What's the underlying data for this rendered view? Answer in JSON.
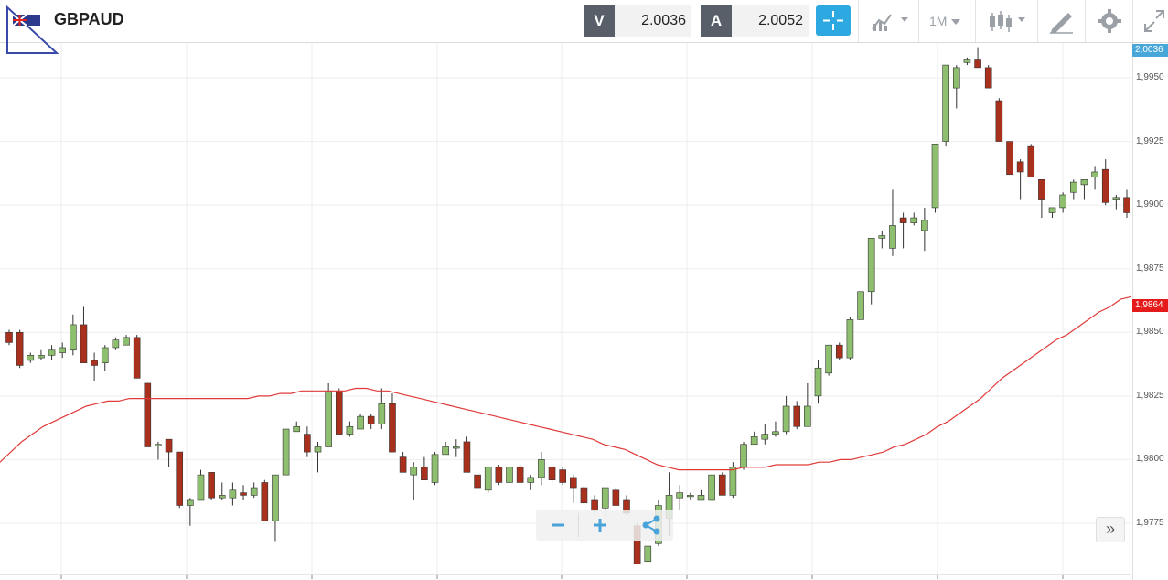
{
  "header": {
    "symbol": "GBPAUD",
    "sell_label": "V",
    "sell_price": "2.0036",
    "buy_label": "A",
    "buy_price": "2.0052",
    "timeframe": "1M",
    "accent_color": "#2ea8e0"
  },
  "icons": [
    "flag-icon",
    "crosshair-icon",
    "indicators-icon",
    "candle-type-icon",
    "draw-icon",
    "settings-icon",
    "fullscreen-icon",
    "share-icon",
    "zoom-out-icon",
    "zoom-in-icon",
    "scroll-right-icon"
  ],
  "chart_data": {
    "type": "candlestick",
    "ylim": [
      1.9758,
      1.9962
    ],
    "y_ticks": [
      "1,9950",
      "1,9925",
      "1,9900",
      "1,9875",
      "1,9850",
      "1,9825",
      "1,9800",
      "1,9775"
    ],
    "y_tick_values": [
      1.995,
      1.9925,
      1.99,
      1.9875,
      1.985,
      1.9825,
      1.98,
      1.9775
    ],
    "grid": true,
    "current_price_label": "2,0036",
    "ma_value_label": "1,9864",
    "up_color": "#8dbf6e",
    "down_color": "#a8301c",
    "ma_color": "#e03a3a",
    "candles": [
      [
        1.985,
        1.9851,
        1.9845,
        1.9846
      ],
      [
        1.985,
        1.9851,
        1.9836,
        1.9837
      ],
      [
        1.9839,
        1.9842,
        1.9838,
        1.9841
      ],
      [
        1.984,
        1.9843,
        1.9839,
        1.9841
      ],
      [
        1.9841,
        1.9845,
        1.9839,
        1.9843
      ],
      [
        1.9842,
        1.9846,
        1.984,
        1.9844
      ],
      [
        1.9843,
        1.9857,
        1.9841,
        1.9853
      ],
      [
        1.9853,
        1.986,
        1.9838,
        1.9838
      ],
      [
        1.9839,
        1.9842,
        1.9831,
        1.9837
      ],
      [
        1.9838,
        1.9845,
        1.9835,
        1.9844
      ],
      [
        1.9844,
        1.9848,
        1.9843,
        1.9847
      ],
      [
        1.9845,
        1.9849,
        1.9846,
        1.9848
      ],
      [
        1.9848,
        1.9849,
        1.9832,
        1.9832
      ],
      [
        1.983,
        1.983,
        1.9805,
        1.9805
      ],
      [
        1.9806,
        1.9807,
        1.98,
        1.9806
      ],
      [
        1.9808,
        1.9808,
        1.9797,
        1.9803
      ],
      [
        1.9803,
        1.9803,
        1.9781,
        1.9782
      ],
      [
        1.9782,
        1.9785,
        1.9774,
        1.9784
      ],
      [
        1.9784,
        1.9796,
        1.9784,
        1.9794
      ],
      [
        1.9795,
        1.9795,
        1.9784,
        1.9785
      ],
      [
        1.9785,
        1.9791,
        1.9784,
        1.9786
      ],
      [
        1.9785,
        1.9791,
        1.9782,
        1.9788
      ],
      [
        1.9787,
        1.979,
        1.9784,
        1.9786
      ],
      [
        1.9786,
        1.9791,
        1.9785,
        1.9789
      ],
      [
        1.9791,
        1.9792,
        1.9776,
        1.9776
      ],
      [
        1.9776,
        1.9794,
        1.9768,
        1.9794
      ],
      [
        1.9794,
        1.9812,
        1.9794,
        1.9812
      ],
      [
        1.9811,
        1.9815,
        1.9811,
        1.9813
      ],
      [
        1.981,
        1.9813,
        1.9801,
        1.9803
      ],
      [
        1.9803,
        1.9807,
        1.9795,
        1.9805
      ],
      [
        1.9805,
        1.983,
        1.9805,
        1.9827
      ],
      [
        1.9827,
        1.9828,
        1.981,
        1.981
      ],
      [
        1.981,
        1.9815,
        1.9809,
        1.9813
      ],
      [
        1.9812,
        1.9818,
        1.9812,
        1.9817
      ],
      [
        1.9817,
        1.9818,
        1.9812,
        1.9814
      ],
      [
        1.9814,
        1.9828,
        1.9812,
        1.9822
      ],
      [
        1.9822,
        1.9826,
        1.9803,
        1.9803
      ],
      [
        1.9801,
        1.9803,
        1.9795,
        1.9795
      ],
      [
        1.9794,
        1.9799,
        1.9784,
        1.9797
      ],
      [
        1.9797,
        1.9801,
        1.9792,
        1.9792
      ],
      [
        1.9791,
        1.9803,
        1.979,
        1.9802
      ],
      [
        1.9802,
        1.9807,
        1.9802,
        1.9805
      ],
      [
        1.9805,
        1.9808,
        1.9801,
        1.9805
      ],
      [
        1.9807,
        1.9809,
        1.9795,
        1.9795
      ],
      [
        1.9794,
        1.9794,
        1.9789,
        1.9789
      ],
      [
        1.9788,
        1.9797,
        1.9787,
        1.9797
      ],
      [
        1.9797,
        1.9798,
        1.979,
        1.9791
      ],
      [
        1.9791,
        1.9797,
        1.9791,
        1.9797
      ],
      [
        1.9797,
        1.9798,
        1.9791,
        1.9791
      ],
      [
        1.9791,
        1.9794,
        1.9788,
        1.9793
      ],
      [
        1.9793,
        1.9803,
        1.979,
        1.98
      ],
      [
        1.9797,
        1.9798,
        1.9791,
        1.9792
      ],
      [
        1.9796,
        1.9797,
        1.979,
        1.9791
      ],
      [
        1.9793,
        1.9794,
        1.9783,
        1.9789
      ],
      [
        1.9789,
        1.979,
        1.9782,
        1.9783
      ],
      [
        1.9784,
        1.9786,
        1.9779,
        1.978
      ],
      [
        1.9781,
        1.9789,
        1.9777,
        1.9789
      ],
      [
        1.9788,
        1.9789,
        1.9782,
        1.9782
      ],
      [
        1.9784,
        1.9786,
        1.9778,
        1.9779
      ],
      [
        1.9774,
        1.9775,
        1.9759,
        1.9759
      ],
      [
        1.976,
        1.9766,
        1.976,
        1.9766
      ],
      [
        1.9767,
        1.9784,
        1.9766,
        1.9782
      ],
      [
        1.9777,
        1.9795,
        1.977,
        1.9786
      ],
      [
        1.9785,
        1.979,
        1.978,
        1.9787
      ],
      [
        1.9786,
        1.9787,
        1.9784,
        1.9786
      ],
      [
        1.9784,
        1.9788,
        1.9784,
        1.9786
      ],
      [
        1.9784,
        1.9794,
        1.9784,
        1.9794
      ],
      [
        1.9794,
        1.9795,
        1.9786,
        1.9786
      ],
      [
        1.9786,
        1.9799,
        1.9785,
        1.9797
      ],
      [
        1.9797,
        1.9807,
        1.9796,
        1.9806
      ],
      [
        1.9806,
        1.9811,
        1.9806,
        1.9809
      ],
      [
        1.9808,
        1.9814,
        1.9806,
        1.981
      ],
      [
        1.981,
        1.9815,
        1.9809,
        1.9811
      ],
      [
        1.9811,
        1.9825,
        1.981,
        1.9821
      ],
      [
        1.9821,
        1.9823,
        1.9812,
        1.9813
      ],
      [
        1.9813,
        1.983,
        1.9813,
        1.9821
      ],
      [
        1.9825,
        1.9839,
        1.9822,
        1.9836
      ],
      [
        1.9834,
        1.9845,
        1.9833,
        1.9845
      ],
      [
        1.9845,
        1.9846,
        1.9839,
        1.984
      ],
      [
        1.984,
        1.9856,
        1.9839,
        1.9855
      ],
      [
        1.9855,
        1.9866,
        1.9855,
        1.9866
      ],
      [
        1.9866,
        1.9887,
        1.9861,
        1.9887
      ],
      [
        1.9887,
        1.989,
        1.9883,
        1.9888
      ],
      [
        1.9883,
        1.9906,
        1.988,
        1.9892
      ],
      [
        1.9895,
        1.9897,
        1.9883,
        1.9893
      ],
      [
        1.9893,
        1.9897,
        1.9892,
        1.9895
      ],
      [
        1.989,
        1.9899,
        1.9882,
        1.9894
      ],
      [
        1.9899,
        1.9924,
        1.9897,
        1.9924
      ],
      [
        1.9925,
        1.9955,
        1.9923,
        1.9955
      ],
      [
        1.9946,
        1.9955,
        1.9938,
        1.9954
      ],
      [
        1.9956,
        1.9958,
        1.9955,
        1.9957
      ],
      [
        1.9957,
        1.9962,
        1.9954,
        1.9954
      ],
      [
        1.9954,
        1.9955,
        1.9946,
        1.9946
      ],
      [
        1.9941,
        1.9942,
        1.9925,
        1.9925
      ],
      [
        1.9925,
        1.9925,
        1.9912,
        1.9912
      ],
      [
        1.9917,
        1.9918,
        1.9902,
        1.9913
      ],
      [
        1.9923,
        1.9924,
        1.9911,
        1.9911
      ],
      [
        1.991,
        1.991,
        1.9895,
        1.9902
      ],
      [
        1.9897,
        1.9899,
        1.9895,
        1.9899
      ],
      [
        1.9899,
        1.9905,
        1.9897,
        1.9904
      ],
      [
        1.9905,
        1.991,
        1.9902,
        1.9909
      ],
      [
        1.9908,
        1.9909,
        1.9902,
        1.991
      ],
      [
        1.9911,
        1.9915,
        1.9906,
        1.9913
      ],
      [
        1.9914,
        1.9918,
        1.99,
        1.9901
      ],
      [
        1.9902,
        1.9904,
        1.9898,
        1.9903
      ],
      [
        1.9903,
        1.9906,
        1.9895,
        1.9897
      ]
    ],
    "ma": [
      1.9799,
      1.9803,
      1.9807,
      1.981,
      1.9813,
      1.9815,
      1.9817,
      1.9819,
      1.9821,
      1.9822,
      1.9823,
      1.9823,
      1.9824,
      1.9824,
      1.9824,
      1.9824,
      1.9824,
      1.9824,
      1.9824,
      1.9824,
      1.9824,
      1.9824,
      1.9824,
      1.9824,
      1.9825,
      1.9825,
      1.9826,
      1.9826,
      1.9827,
      1.9827,
      1.9827,
      1.9827,
      1.9827,
      1.9828,
      1.9828,
      1.9827,
      1.9827,
      1.9826,
      1.9825,
      1.9824,
      1.9823,
      1.9822,
      1.9821,
      1.982,
      1.9819,
      1.9818,
      1.9817,
      1.9816,
      1.9815,
      1.9814,
      1.9813,
      1.9812,
      1.9811,
      1.981,
      1.9809,
      1.9808,
      1.9806,
      1.9805,
      1.9804,
      1.9802,
      1.98,
      1.9798,
      1.9797,
      1.9796,
      1.9796,
      1.9796,
      1.9796,
      1.9796,
      1.9796,
      1.9797,
      1.9797,
      1.9797,
      1.9798,
      1.9798,
      1.9798,
      1.9798,
      1.9799,
      1.9799,
      1.98,
      1.98,
      1.9801,
      1.9802,
      1.9803,
      1.9805,
      1.9806,
      1.9808,
      1.981,
      1.9813,
      1.9815,
      1.9818,
      1.9821,
      1.9824,
      1.9828,
      1.9832,
      1.9835,
      1.9838,
      1.9841,
      1.9844,
      1.9847,
      1.9849,
      1.9852,
      1.9855,
      1.9858,
      1.986,
      1.9863,
      1.9864
    ]
  }
}
